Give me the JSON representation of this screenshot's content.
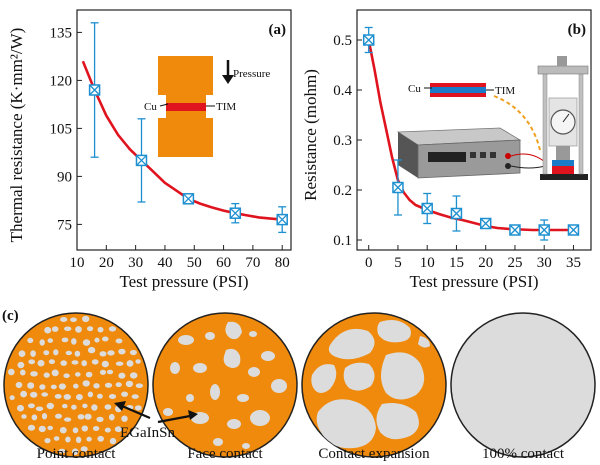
{
  "chart_data": [
    {
      "panel": "(a)",
      "type": "line",
      "xlabel": "Test pressure (PSI)",
      "ylabel": "Thermal resistance (K·mm²/W)",
      "xlim": [
        10,
        83
      ],
      "ylim": [
        67,
        142
      ],
      "xticks": [
        10,
        20,
        30,
        40,
        50,
        60,
        70,
        80
      ],
      "yticks": [
        75,
        90,
        105,
        120,
        135
      ],
      "x": [
        16,
        32,
        48,
        64,
        80
      ],
      "y": [
        117,
        95,
        83,
        78.5,
        76.5
      ],
      "yerr": [
        21,
        13,
        1.5,
        3,
        4
      ],
      "fit": {
        "x": [
          12,
          16,
          20,
          24,
          28,
          32,
          36,
          40,
          44,
          48,
          52,
          56,
          60,
          64,
          68,
          72,
          76,
          80
        ],
        "y": [
          126,
          117,
          109,
          103,
          98.5,
          95,
          91.5,
          88,
          85.5,
          83,
          81.5,
          80.3,
          79.3,
          78.5,
          77.8,
          77.2,
          76.8,
          76.5
        ]
      },
      "inset": {
        "pressure": "Pressure",
        "cu": "Cu",
        "tim": "TIM"
      }
    },
    {
      "panel": "(b)",
      "type": "line",
      "xlabel": "Test pressure (PSI)",
      "ylabel": "Resistance (mohm)",
      "xlim": [
        -2,
        38
      ],
      "ylim": [
        0.08,
        0.56
      ],
      "xticks": [
        0,
        5,
        10,
        15,
        20,
        25,
        30,
        35
      ],
      "yticks": [
        0.1,
        0.2,
        0.3,
        0.4,
        0.5
      ],
      "ytick_labels": [
        "0.1",
        "0.2",
        "0.3",
        "0.4",
        "0.5"
      ],
      "x": [
        0,
        5,
        10,
        15,
        20,
        25,
        30,
        35
      ],
      "y": [
        0.5,
        0.205,
        0.163,
        0.153,
        0.133,
        0.12,
        0.12,
        0.12
      ],
      "yerr": [
        0.025,
        0.055,
        0.03,
        0.035,
        0.005,
        0.005,
        0.02,
        0.005
      ],
      "fit": {
        "x": [
          0,
          1,
          2,
          3,
          4,
          5,
          6,
          7,
          8,
          9,
          10,
          12,
          14,
          16,
          18,
          20,
          22,
          24,
          26,
          28,
          30,
          32,
          35
        ],
        "y": [
          0.5,
          0.44,
          0.375,
          0.32,
          0.265,
          0.22,
          0.195,
          0.18,
          0.17,
          0.165,
          0.16,
          0.152,
          0.145,
          0.14,
          0.134,
          0.128,
          0.124,
          0.122,
          0.121,
          0.12,
          0.12,
          0.12,
          0.12
        ]
      },
      "inset": {
        "cu": "Cu",
        "tim": "TIM"
      }
    }
  ],
  "panel_c": {
    "label": "(c)",
    "captions": [
      "Point contact",
      "Face contact",
      "Contact expansion",
      "100% contact"
    ],
    "annotation": "EGaInSn",
    "colors": {
      "orange": "#f08a0c",
      "gray": "#dcdcdc",
      "red": "#e0141e",
      "blue": "#1a7cc8"
    }
  }
}
